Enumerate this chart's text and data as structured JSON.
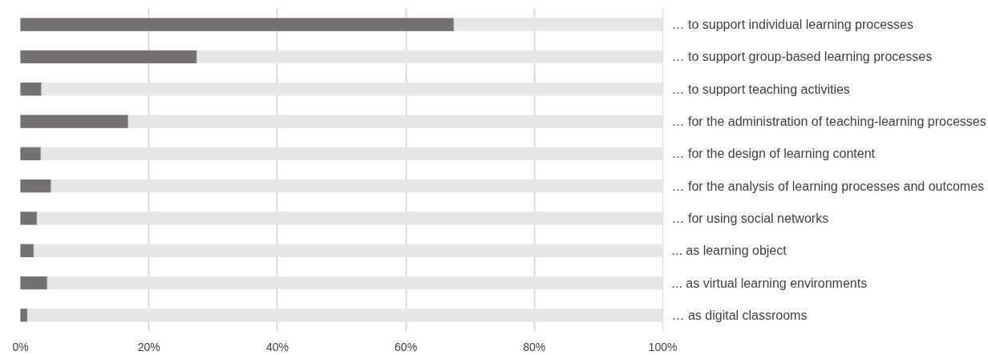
{
  "chart_data": {
    "type": "bar",
    "orientation": "horizontal",
    "stacked": true,
    "categories": [
      "… to support individual learning processes",
      "… to support group-based  learning processes",
      "… to support teaching activities",
      "… for the administration of teaching-learning processes",
      "… for the design of learning content",
      "… for the analysis of learning processes and outcomes",
      "… for using social networks",
      "... as learning object",
      "... as virtual learning environments",
      "… as digital classrooms"
    ],
    "series": [
      {
        "color": "#767171",
        "values": [
          67.5,
          27.5,
          3.3,
          16.8,
          3.2,
          4.8,
          2.6,
          2.1,
          4.2,
          1.1
        ]
      },
      {
        "color": "#e7e6e6",
        "values": [
          32.5,
          72.5,
          96.7,
          83.2,
          96.8,
          95.2,
          97.4,
          97.9,
          95.8,
          98.9
        ]
      }
    ],
    "xlim": [
      0,
      100
    ],
    "xticks": [
      {
        "value": 0,
        "label": "0%"
      },
      {
        "value": 20,
        "label": "20%"
      },
      {
        "value": 40,
        "label": "40%"
      },
      {
        "value": 60,
        "label": "60%"
      },
      {
        "value": 80,
        "label": "80%"
      },
      {
        "value": 100,
        "label": "100%"
      }
    ],
    "grid": "x"
  }
}
